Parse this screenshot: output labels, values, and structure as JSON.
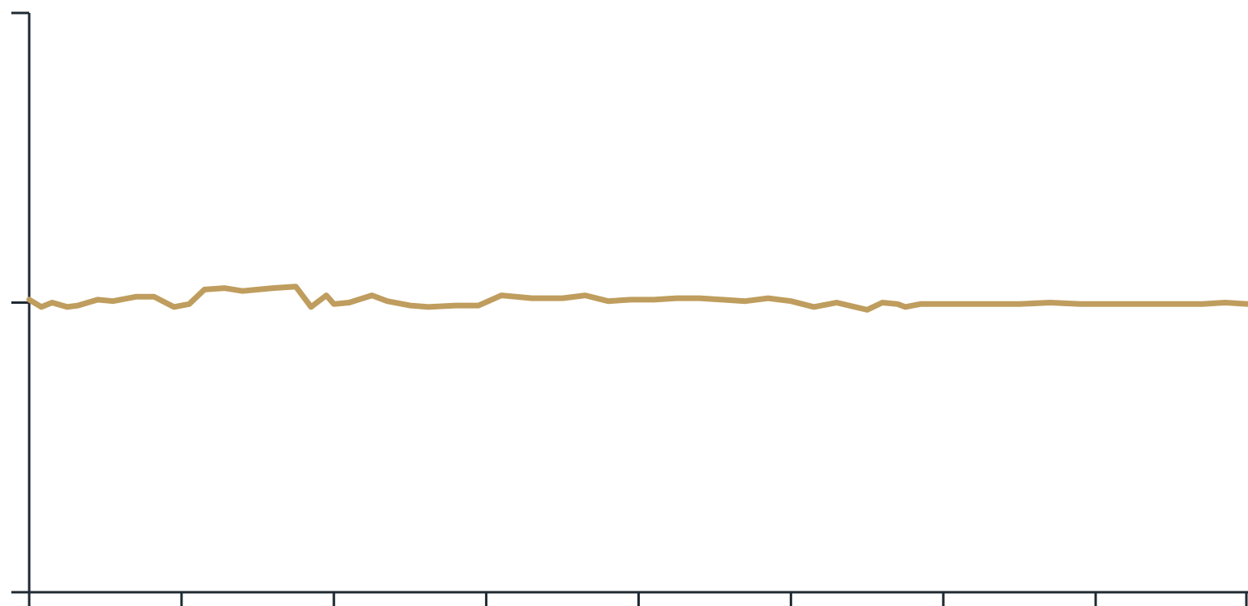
{
  "chart_data": {
    "type": "line",
    "title": "",
    "xlabel": "",
    "ylabel": "",
    "grid": false,
    "legend": "none",
    "xlim": [
      0,
      8
    ],
    "ylim": [
      0,
      2
    ],
    "x_tick_count": 9,
    "y_tick_count": 3,
    "series_color": "#bf9d5e",
    "axis_color": "#1f2a33",
    "series": [
      {
        "x": [
          0,
          0.08,
          0.15,
          0.25,
          0.32,
          0.45,
          0.55,
          0.7,
          0.82,
          0.95,
          1.05,
          1.15,
          1.28,
          1.4,
          1.5,
          1.6,
          1.75,
          1.85,
          1.95,
          2.0,
          2.1,
          2.25,
          2.35,
          2.5,
          2.62,
          2.8,
          2.95,
          3.1,
          3.3,
          3.5,
          3.65,
          3.8,
          3.95,
          4.1,
          4.25,
          4.4,
          4.55,
          4.7,
          4.85,
          5.0,
          5.15,
          5.3,
          5.5,
          5.6,
          5.7,
          5.75,
          5.8,
          5.85,
          5.95,
          6.1,
          6.3,
          6.5,
          6.7,
          6.9,
          7.1,
          7.3,
          7.5,
          7.7,
          7.85,
          8.0
        ],
        "y": [
          1.01,
          0.985,
          1.0,
          0.985,
          0.99,
          1.01,
          1.005,
          1.02,
          1.02,
          0.985,
          0.995,
          1.045,
          1.05,
          1.04,
          1.045,
          1.05,
          1.055,
          0.985,
          1.025,
          0.995,
          1.0,
          1.025,
          1.005,
          0.99,
          0.985,
          0.99,
          0.99,
          1.025,
          1.015,
          1.015,
          1.025,
          1.005,
          1.01,
          1.01,
          1.015,
          1.015,
          1.01,
          1.005,
          1.015,
          1.005,
          0.985,
          1.0,
          0.975,
          1.0,
          0.995,
          0.985,
          0.99,
          0.995,
          0.995,
          0.995,
          0.995,
          0.995,
          1.0,
          0.995,
          0.995,
          0.995,
          0.995,
          0.995,
          1.0,
          0.995
        ]
      }
    ]
  }
}
